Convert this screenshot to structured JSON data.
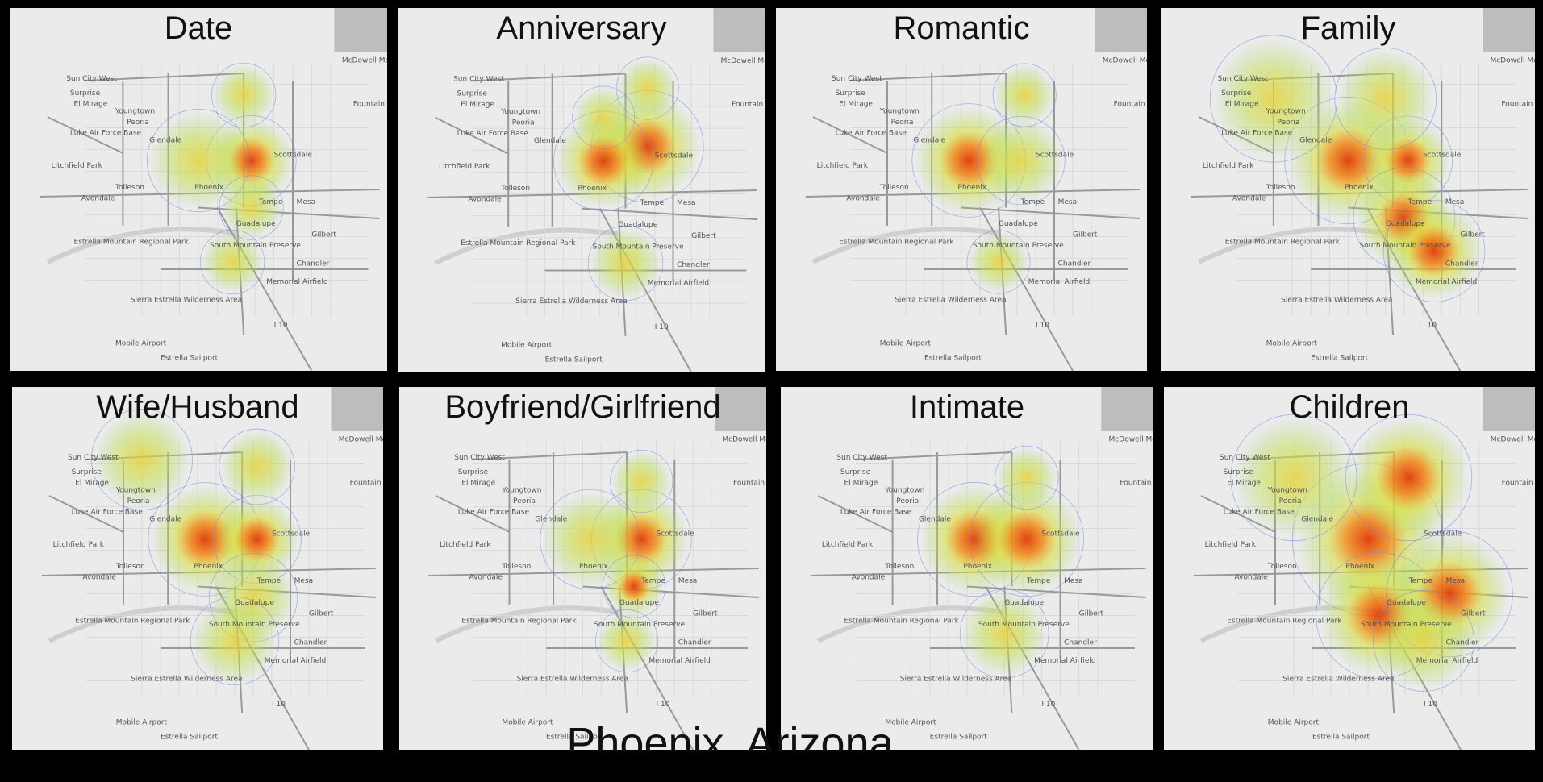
{
  "caption": "Phoenix, Arizona",
  "panels": [
    {
      "title": "Date"
    },
    {
      "title": "Anniversary"
    },
    {
      "title": "Romantic"
    },
    {
      "title": "Family"
    },
    {
      "title": "Wife/Husband"
    },
    {
      "title": "Boyfriend/Girlfriend"
    },
    {
      "title": "Intimate"
    },
    {
      "title": "Children"
    }
  ],
  "map_labels": [
    "Sun City West",
    "Surprise",
    "El Mirage",
    "Youngtown",
    "Peoria",
    "Luke Air Force Base",
    "Glendale",
    "Litchfield Park",
    "Tolleson",
    "Avondale",
    "Phoenix",
    "Scottsdale",
    "Tempe",
    "Mesa",
    "Guadalupe",
    "Gilbert",
    "Chandler",
    "South Mountain Preserve",
    "Estrella Mountain Regional Park",
    "Sierra Estrella Wilderness Area",
    "Fountain Hills",
    "McDowell Mountain Regional Park",
    "Memorial Airfield",
    "Mobile Airport",
    "Estrella Sailport",
    "I 10"
  ]
}
